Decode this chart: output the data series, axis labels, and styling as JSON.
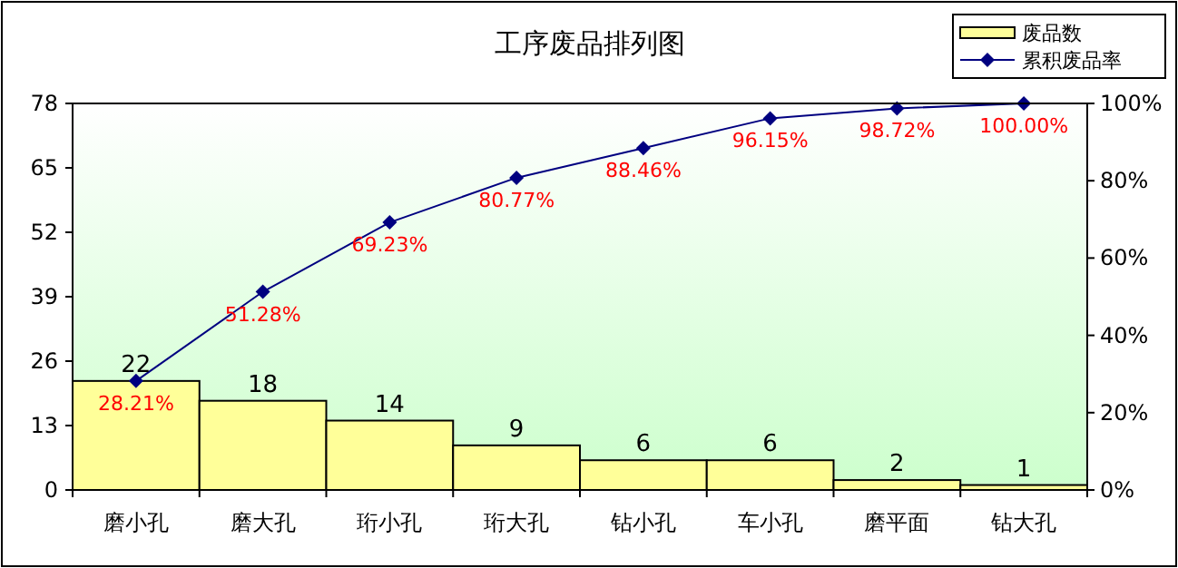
{
  "chart_data": {
    "type": "bar",
    "title": "工序废品排列图",
    "categories": [
      "磨小孔",
      "磨大孔",
      "珩小孔",
      "珩大孔",
      "钻小孔",
      "车小孔",
      "磨平面",
      "钻大孔"
    ],
    "series": [
      {
        "name": "废品数",
        "color": "#ffff99",
        "values": [
          22,
          18,
          14,
          9,
          6,
          6,
          2,
          1
        ],
        "data_labels": true
      },
      {
        "name": "累积废品率",
        "type": "line",
        "axis": "y2",
        "color": "#000080",
        "marker": "diamond",
        "values": [
          28.21,
          51.28,
          69.23,
          80.77,
          88.46,
          96.15,
          98.72,
          100
        ],
        "value_labels": [
          "28.21%",
          "51.28%",
          "69.23%",
          "80.77%",
          "88.46%",
          "96.15%",
          "98.72%",
          "100.00%"
        ]
      }
    ],
    "ylim": [
      0,
      78
    ],
    "yticks": [
      0,
      13,
      26,
      39,
      52,
      65,
      78
    ],
    "y2lim": [
      0,
      100
    ],
    "y2ticks": [
      {
        "value": 0,
        "label": "0%"
      },
      {
        "value": 20,
        "label": "20%"
      },
      {
        "value": 40,
        "label": "40%"
      },
      {
        "value": 60,
        "label": "60%"
      },
      {
        "value": 80,
        "label": "80%"
      },
      {
        "value": 100,
        "label": "100%"
      }
    ],
    "legend": "top right",
    "grid": false
  }
}
